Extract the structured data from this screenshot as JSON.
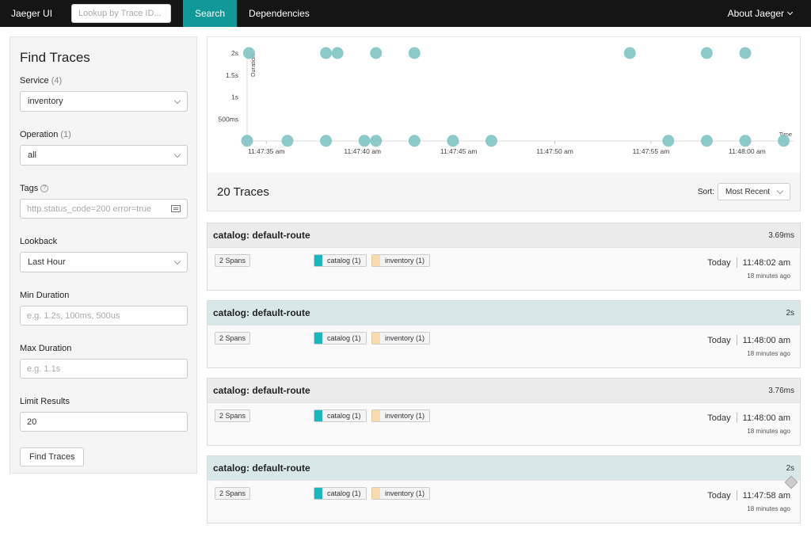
{
  "nav": {
    "brand": "Jaeger UI",
    "lookup_placeholder": "Lookup by Trace ID...",
    "tabs": [
      {
        "label": "Search",
        "active": true
      },
      {
        "label": "Dependencies",
        "active": false
      }
    ],
    "about": "About Jaeger"
  },
  "find": {
    "title": "Find Traces",
    "service": {
      "label": "Service",
      "count": "(4)",
      "value": "inventory"
    },
    "operation": {
      "label": "Operation",
      "count": "(1)",
      "value": "all"
    },
    "tags": {
      "label": "Tags",
      "placeholder": "http.status_code=200 error=true"
    },
    "lookback": {
      "label": "Lookback",
      "value": "Last Hour"
    },
    "min_duration": {
      "label": "Min Duration",
      "placeholder": "e.g. 1.2s, 100ms, 500us"
    },
    "max_duration": {
      "label": "Max Duration",
      "placeholder": "e.g. 1.1s"
    },
    "limit": {
      "label": "Limit Results",
      "value": "20"
    },
    "button": "Find Traces"
  },
  "chart_data": {
    "type": "scatter",
    "ylabel": "Duration",
    "xlabel": "Time",
    "y_ticks": [
      "500ms",
      "1s",
      "1.5s",
      "2s"
    ],
    "x_ticks": [
      "11:47:35 am",
      "11:47:40 am",
      "11:47:45 am",
      "11:47:50 am",
      "11:47:55 am",
      "11:48:00 am"
    ],
    "x_tick_seconds": [
      35,
      40,
      45,
      50,
      55,
      60
    ],
    "ylim": [
      0,
      2000
    ],
    "xlim_seconds": [
      34,
      62
    ],
    "points": [
      {
        "t": 34.1,
        "ms": 2000
      },
      {
        "t": 38.1,
        "ms": 2000
      },
      {
        "t": 38.7,
        "ms": 2000
      },
      {
        "t": 40.7,
        "ms": 2000
      },
      {
        "t": 42.7,
        "ms": 2000
      },
      {
        "t": 53.9,
        "ms": 2000
      },
      {
        "t": 57.9,
        "ms": 2000
      },
      {
        "t": 59.9,
        "ms": 2000
      },
      {
        "t": 34.0,
        "ms": 4
      },
      {
        "t": 36.1,
        "ms": 4
      },
      {
        "t": 38.1,
        "ms": 4
      },
      {
        "t": 40.1,
        "ms": 4
      },
      {
        "t": 40.7,
        "ms": 4
      },
      {
        "t": 42.7,
        "ms": 4
      },
      {
        "t": 44.7,
        "ms": 4
      },
      {
        "t": 46.7,
        "ms": 4
      },
      {
        "t": 55.9,
        "ms": 4
      },
      {
        "t": 57.9,
        "ms": 4
      },
      {
        "t": 59.9,
        "ms": 4
      },
      {
        "t": 61.9,
        "ms": 4
      }
    ],
    "point_color": "#7fc4c4"
  },
  "results": {
    "count": "20 Traces",
    "sort_label": "Sort:",
    "sort_value": "Most Recent"
  },
  "traces": [
    {
      "name": "catalog: default-route",
      "duration": "3.69ms",
      "spans": "2 Spans",
      "services": [
        {
          "name": "catalog (1)",
          "color": "#17b8be"
        },
        {
          "name": "inventory (1)",
          "color": "#f8dcaa"
        }
      ],
      "day": "Today",
      "time": "11:48:02 am",
      "ago": "18 minutes ago",
      "style": "gray"
    },
    {
      "name": "catalog: default-route",
      "duration": "2s",
      "spans": "2 Spans",
      "services": [
        {
          "name": "catalog (1)",
          "color": "#17b8be"
        },
        {
          "name": "inventory (1)",
          "color": "#f8dcaa"
        }
      ],
      "day": "Today",
      "time": "11:48:00 am",
      "ago": "18 minutes ago",
      "style": "teal"
    },
    {
      "name": "catalog: default-route",
      "duration": "3.76ms",
      "spans": "2 Spans",
      "services": [
        {
          "name": "catalog (1)",
          "color": "#17b8be"
        },
        {
          "name": "inventory (1)",
          "color": "#f8dcaa"
        }
      ],
      "day": "Today",
      "time": "11:48:00 am",
      "ago": "18 minutes ago",
      "style": "gray"
    },
    {
      "name": "catalog: default-route",
      "duration": "2s",
      "spans": "2 Spans",
      "services": [
        {
          "name": "catalog (1)",
          "color": "#17b8be"
        },
        {
          "name": "inventory (1)",
          "color": "#f8dcaa"
        }
      ],
      "day": "Today",
      "time": "11:47:58 am",
      "ago": "18 minutes ago",
      "style": "teal"
    }
  ]
}
